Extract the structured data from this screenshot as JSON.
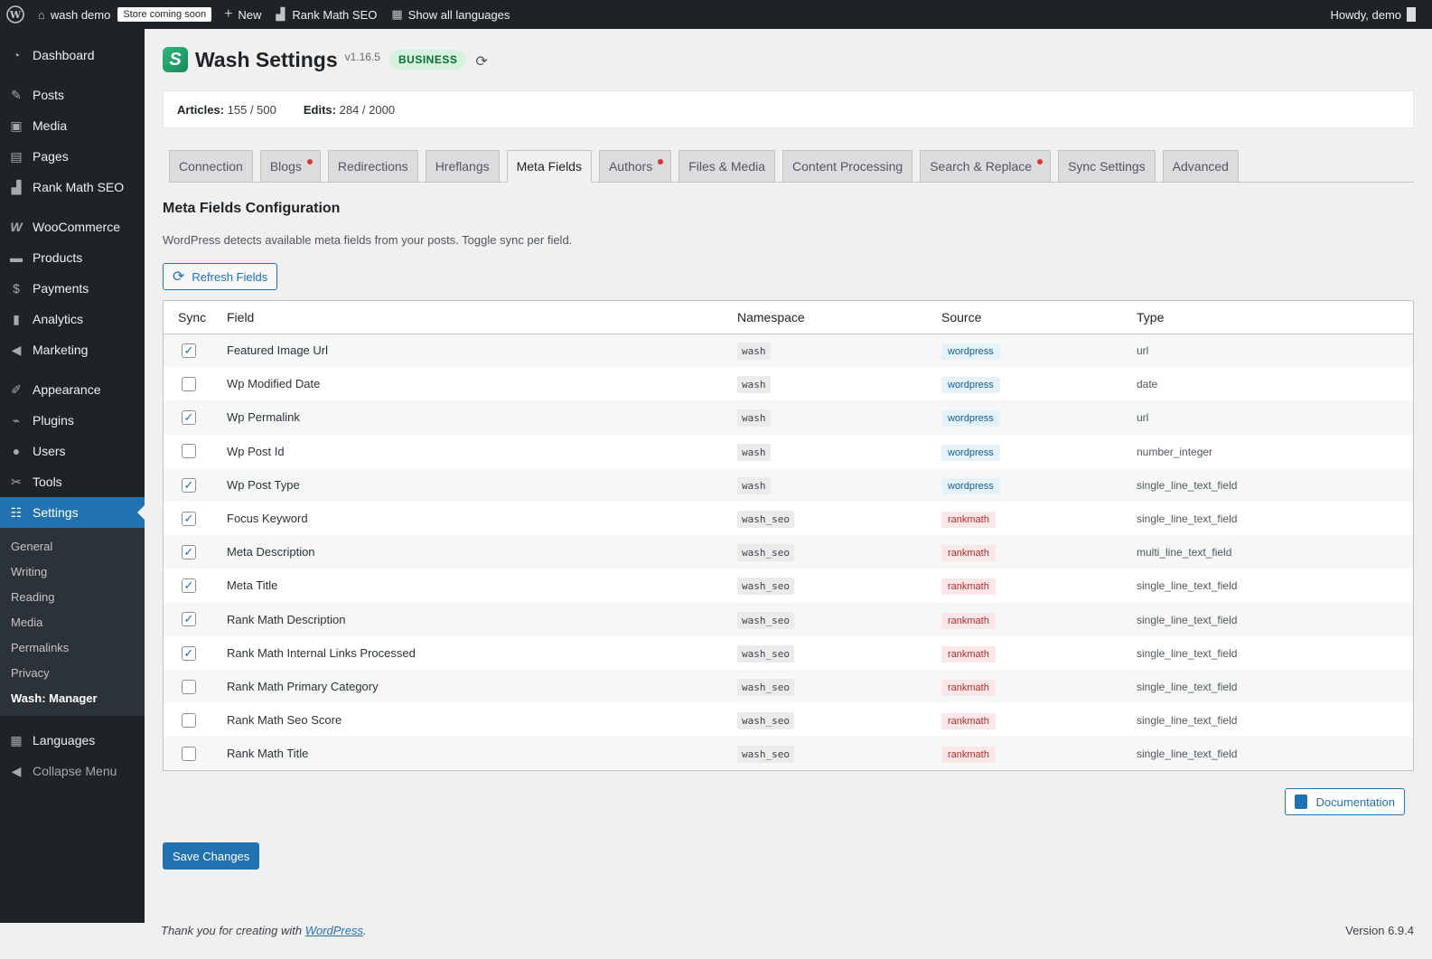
{
  "adminbar": {
    "site_name": "wash demo",
    "store_badge": "Store coming soon",
    "new_label": "New",
    "rankmath_label": "Rank Math SEO",
    "languages_label": "Show all languages",
    "howdy": "Howdy, demo"
  },
  "sidebar": {
    "items": [
      {
        "label": "Dashboard",
        "icon": "dashboard-icon"
      },
      {
        "label": "Posts",
        "icon": "pin-icon"
      },
      {
        "label": "Media",
        "icon": "media-icon"
      },
      {
        "label": "Pages",
        "icon": "pages-icon"
      },
      {
        "label": "Rank Math SEO",
        "icon": "chart-icon"
      },
      {
        "label": "WooCommerce",
        "icon": "woo-icon"
      },
      {
        "label": "Products",
        "icon": "archive-icon"
      },
      {
        "label": "Payments",
        "icon": "dollar-icon"
      },
      {
        "label": "Analytics",
        "icon": "bar-chart-icon"
      },
      {
        "label": "Marketing",
        "icon": "megaphone-icon"
      },
      {
        "label": "Appearance",
        "icon": "brush-icon"
      },
      {
        "label": "Plugins",
        "icon": "plug-icon"
      },
      {
        "label": "Users",
        "icon": "user-icon"
      },
      {
        "label": "Tools",
        "icon": "wrench-icon"
      },
      {
        "label": "Settings",
        "icon": "settings-icon"
      }
    ],
    "submenu": [
      "General",
      "Writing",
      "Reading",
      "Media",
      "Permalinks",
      "Privacy",
      "Wash: Manager"
    ],
    "languages": "Languages",
    "collapse": "Collapse Menu"
  },
  "header": {
    "title": "Wash Settings",
    "version": "v1.16.5",
    "plan": "BUSINESS"
  },
  "stats": {
    "articles_label": "Articles:",
    "articles_value": "155 / 500",
    "edits_label": "Edits:",
    "edits_value": "284 / 2000"
  },
  "tabs": [
    {
      "label": "Connection",
      "dot": false
    },
    {
      "label": "Blogs",
      "dot": true
    },
    {
      "label": "Redirections",
      "dot": false
    },
    {
      "label": "Hreflangs",
      "dot": false
    },
    {
      "label": "Meta Fields",
      "dot": false
    },
    {
      "label": "Authors",
      "dot": true
    },
    {
      "label": "Files & Media",
      "dot": false
    },
    {
      "label": "Content Processing",
      "dot": false
    },
    {
      "label": "Search & Replace",
      "dot": true
    },
    {
      "label": "Sync Settings",
      "dot": false
    },
    {
      "label": "Advanced",
      "dot": false
    }
  ],
  "section": {
    "title": "Meta Fields Configuration",
    "description": "WordPress detects available meta fields from your posts. Toggle sync per field.",
    "refresh_label": "Refresh Fields"
  },
  "table": {
    "headers": [
      "Sync",
      "Field",
      "Namespace",
      "Source",
      "Type"
    ],
    "rows": [
      {
        "sync": true,
        "field": "Featured Image Url",
        "namespace": "wash",
        "source": "wordpress",
        "type": "url"
      },
      {
        "sync": false,
        "field": "Wp Modified Date",
        "namespace": "wash",
        "source": "wordpress",
        "type": "date"
      },
      {
        "sync": true,
        "field": "Wp Permalink",
        "namespace": "wash",
        "source": "wordpress",
        "type": "url"
      },
      {
        "sync": false,
        "field": "Wp Post Id",
        "namespace": "wash",
        "source": "wordpress",
        "type": "number_integer"
      },
      {
        "sync": true,
        "field": "Wp Post Type",
        "namespace": "wash",
        "source": "wordpress",
        "type": "single_line_text_field"
      },
      {
        "sync": true,
        "field": "Focus Keyword",
        "namespace": "wash_seo",
        "source": "rankmath",
        "type": "single_line_text_field"
      },
      {
        "sync": true,
        "field": "Meta Description",
        "namespace": "wash_seo",
        "source": "rankmath",
        "type": "multi_line_text_field"
      },
      {
        "sync": true,
        "field": "Meta Title",
        "namespace": "wash_seo",
        "source": "rankmath",
        "type": "single_line_text_field"
      },
      {
        "sync": true,
        "field": "Rank Math Description",
        "namespace": "wash_seo",
        "source": "rankmath",
        "type": "single_line_text_field"
      },
      {
        "sync": true,
        "field": "Rank Math Internal Links Processed",
        "namespace": "wash_seo",
        "source": "rankmath",
        "type": "single_line_text_field"
      },
      {
        "sync": false,
        "field": "Rank Math Primary Category",
        "namespace": "wash_seo",
        "source": "rankmath",
        "type": "single_line_text_field"
      },
      {
        "sync": false,
        "field": "Rank Math Seo Score",
        "namespace": "wash_seo",
        "source": "rankmath",
        "type": "single_line_text_field"
      },
      {
        "sync": false,
        "field": "Rank Math Title",
        "namespace": "wash_seo",
        "source": "rankmath",
        "type": "single_line_text_field"
      }
    ]
  },
  "buttons": {
    "documentation": "Documentation",
    "save": "Save Changes"
  },
  "footer": {
    "thanks_prefix": "Thank you for creating with ",
    "thanks_link": "WordPress",
    "thanks_suffix": ".",
    "version": "Version 6.9.4"
  }
}
